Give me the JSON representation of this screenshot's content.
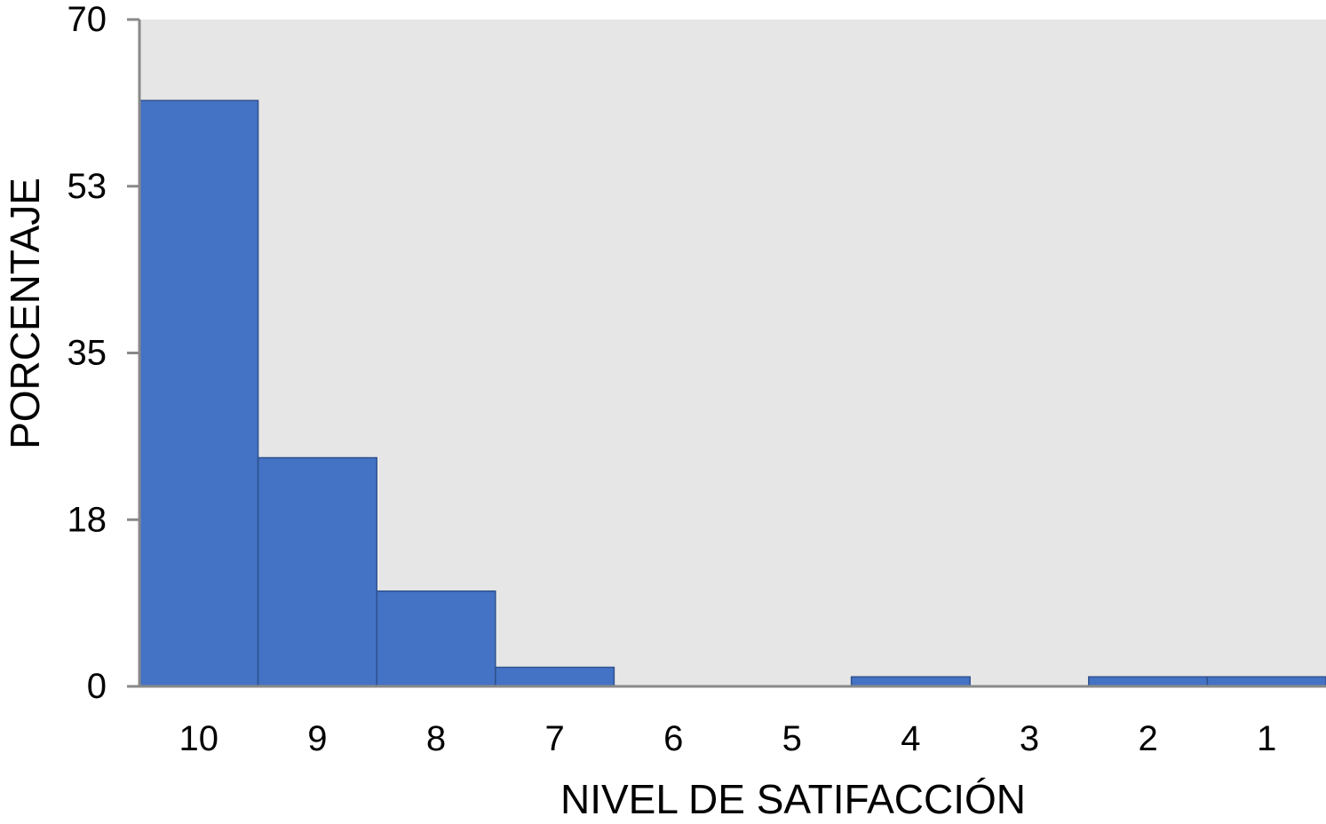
{
  "chart_data": {
    "type": "bar",
    "title": "",
    "xlabel": "NIVEL DE SATIFACCIÓN",
    "ylabel": "PORCENTAJE",
    "categories": [
      "10",
      "9",
      "8",
      "7",
      "6",
      "5",
      "4",
      "3",
      "2",
      "1"
    ],
    "values": [
      61.5,
      24.0,
      10.0,
      2.0,
      0,
      0,
      1.0,
      0,
      1.0,
      1.0
    ],
    "ylim": [
      0,
      70
    ],
    "yticks": [
      "0",
      "18",
      "35",
      "53",
      "70"
    ],
    "ytick_values": [
      0,
      17.5,
      35,
      52.5,
      70
    ],
    "grid": false,
    "legend": "none",
    "colors": {
      "bar": "#4472C4",
      "bar_edge": "#2F528F",
      "plot_background": "#E7E6E6",
      "axis": "#898989"
    }
  }
}
